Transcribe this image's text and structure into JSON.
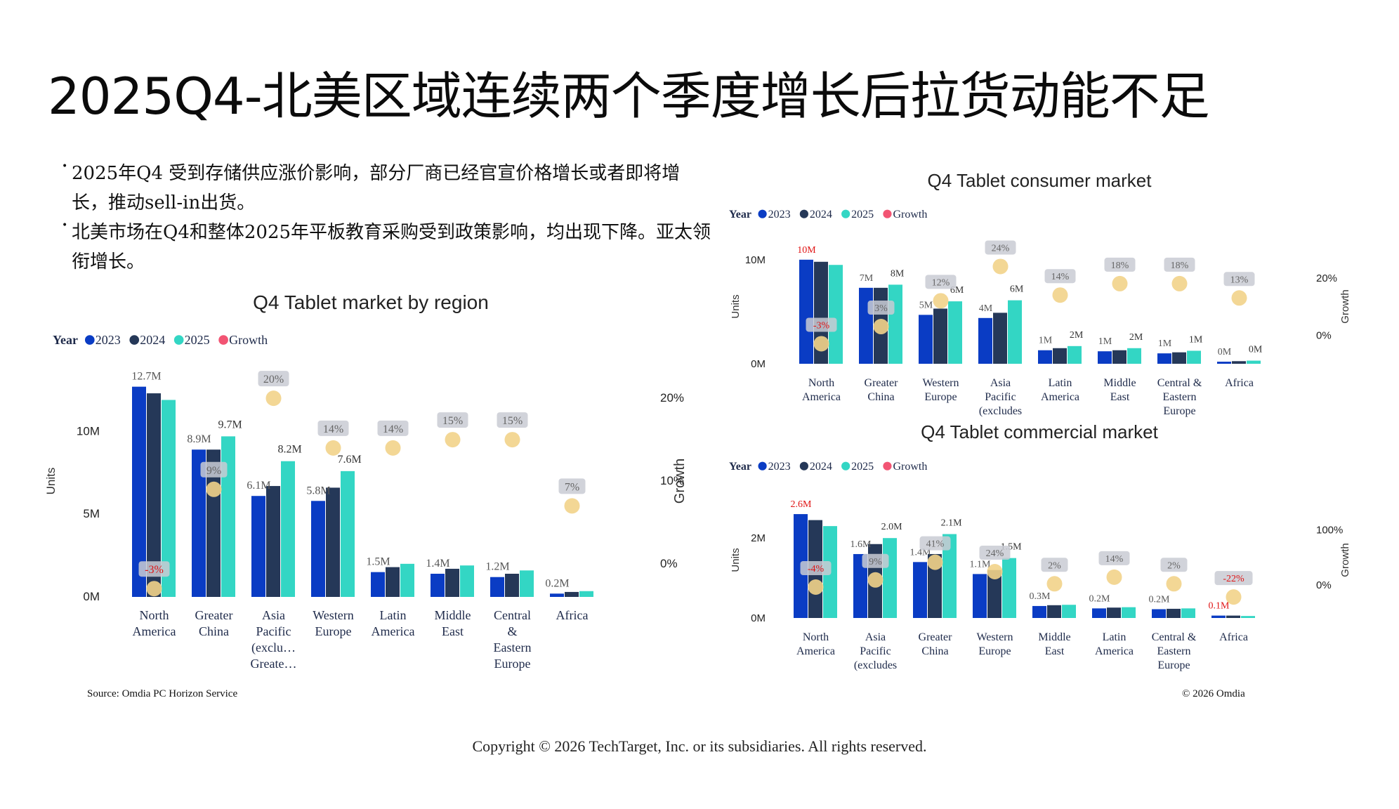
{
  "page": {
    "title": "2025Q4-北美区域连续两个季度增长后拉货动能不足",
    "bullets": [
      "2025年Q4 受到存储供应涨价影响，部分厂商已经官宣价格增长或者即将增长，推动sell-in出货。",
      "北美市场在Q4和整体2025年平板教育采购受到政策影响，均出现下降。亚太领衔增长。"
    ],
    "source": "Source: Omdia PC Horizon Service",
    "omdia_copyright": "© 2026 Omdia",
    "copyright": "Copyright © 2026 TechTarget, Inc. or its subsidiaries. All rights reserved."
  },
  "colors": {
    "y2023": "#0a3cc4",
    "y2024": "#253858",
    "y2025": "#33d6c4",
    "growth": "#f2d38a",
    "growth_legend": "#f25473",
    "neg": "#e01414",
    "axis_text": "#1e2a4a"
  },
  "chart_data": [
    {
      "id": "region",
      "type": "bar",
      "title": "Q4 Tablet market by region",
      "legend_label": "Year",
      "series_names": [
        "2023",
        "2024",
        "2025"
      ],
      "growth_name": "Growth",
      "ylabel": "Units",
      "y2label": "Growth",
      "ylim": [
        0,
        14
      ],
      "y_ticks": [
        {
          "v": 0,
          "label": "0M"
        },
        {
          "v": 5,
          "label": "5M"
        },
        {
          "v": 10,
          "label": "10M"
        }
      ],
      "y2lim": [
        -4,
        24
      ],
      "y2_ticks": [
        {
          "v": 0,
          "label": "0%"
        },
        {
          "v": 10,
          "label": "10%"
        },
        {
          "v": 20,
          "label": "20%"
        }
      ],
      "categories": [
        {
          "name": [
            "North",
            "America"
          ],
          "values": [
            12.7,
            12.3,
            11.9
          ],
          "label": "12.7M",
          "label_on": 0,
          "growth": -3,
          "growth_label": "-3%"
        },
        {
          "name": [
            "Greater",
            "China"
          ],
          "values": [
            8.9,
            8.9,
            9.7
          ],
          "label": "8.9M",
          "label2": "9.7M",
          "growth": 9,
          "growth_label": "9%"
        },
        {
          "name": [
            "Asia",
            "Pacific",
            "(exclu…",
            "Greate…"
          ],
          "values": [
            6.1,
            6.7,
            8.2
          ],
          "label": "6.1M",
          "label2": "8.2M",
          "growth": 20,
          "growth_label": "20%"
        },
        {
          "name": [
            "Western",
            "Europe"
          ],
          "values": [
            5.8,
            6.6,
            7.6
          ],
          "label": "5.8M",
          "label2": "7.6M",
          "growth": 14,
          "growth_label": "14%"
        },
        {
          "name": [
            "Latin",
            "America"
          ],
          "values": [
            1.5,
            1.8,
            2.0
          ],
          "label": "1.5M",
          "growth": 14,
          "growth_label": "14%"
        },
        {
          "name": [
            "Middle",
            "East"
          ],
          "values": [
            1.4,
            1.7,
            1.9
          ],
          "label": "1.4M",
          "growth": 15,
          "growth_label": "15%"
        },
        {
          "name": [
            "Central",
            "&",
            "Eastern",
            "Europe"
          ],
          "values": [
            1.2,
            1.4,
            1.6
          ],
          "label": "1.2M",
          "growth": 15,
          "growth_label": "15%"
        },
        {
          "name": [
            "Africa"
          ],
          "values": [
            0.2,
            0.3,
            0.35
          ],
          "label": "0.2M",
          "growth": 7,
          "growth_label": "7%"
        }
      ]
    },
    {
      "id": "consumer",
      "type": "bar",
      "title": "Q4 Tablet consumer market",
      "legend_label": "Year",
      "series_names": [
        "2023",
        "2024",
        "2025"
      ],
      "growth_name": "Growth",
      "ylabel": "Units",
      "y2label": "Growth",
      "ylim": [
        0,
        11
      ],
      "y_ticks": [
        {
          "v": 0,
          "label": "0M"
        },
        {
          "v": 10,
          "label": "10M"
        }
      ],
      "y2lim": [
        -10,
        30
      ],
      "y2_ticks": [
        {
          "v": 0,
          "label": "0%"
        },
        {
          "v": 20,
          "label": "20%"
        }
      ],
      "categories": [
        {
          "name": [
            "North",
            "America"
          ],
          "values": [
            10.0,
            9.8,
            9.5
          ],
          "label": "10M",
          "label_red": true,
          "growth": -3,
          "growth_label": "-3%"
        },
        {
          "name": [
            "Greater",
            "China"
          ],
          "values": [
            7.3,
            7.3,
            7.6
          ],
          "label": "7M",
          "label2": "8M",
          "growth": 3,
          "growth_label": "3%"
        },
        {
          "name": [
            "Western",
            "Europe"
          ],
          "values": [
            4.7,
            5.3,
            6.0
          ],
          "label": "5M",
          "label2": "6M",
          "growth": 12,
          "growth_label": "12%"
        },
        {
          "name": [
            "Asia",
            "Pacific",
            "(excludes"
          ],
          "values": [
            4.4,
            4.9,
            6.1
          ],
          "label": "4M",
          "label2": "6M",
          "growth": 24,
          "growth_label": "24%"
        },
        {
          "name": [
            "Latin",
            "America"
          ],
          "values": [
            1.3,
            1.5,
            1.7
          ],
          "label": "1M",
          "label2": "2M",
          "growth": 14,
          "growth_label": "14%"
        },
        {
          "name": [
            "Middle",
            "East"
          ],
          "values": [
            1.2,
            1.3,
            1.5
          ],
          "label": "1M",
          "label2": "2M",
          "growth": 18,
          "growth_label": "18%"
        },
        {
          "name": [
            "Central &",
            "Eastern",
            "Europe"
          ],
          "values": [
            1.0,
            1.1,
            1.25
          ],
          "label": "1M",
          "label2": "1M",
          "growth": 18,
          "growth_label": "18%"
        },
        {
          "name": [
            "Africa"
          ],
          "values": [
            0.2,
            0.25,
            0.3
          ],
          "label": "0M",
          "label2": "0M",
          "growth": 13,
          "growth_label": "13%"
        }
      ]
    },
    {
      "id": "commercial",
      "type": "bar",
      "title": "Q4 Tablet commercial market",
      "legend_label": "Year",
      "series_names": [
        "2023",
        "2024",
        "2025"
      ],
      "growth_name": "Growth",
      "ylabel": "Units",
      "y2label": "Growth",
      "ylim": [
        0,
        2.9
      ],
      "y_ticks": [
        {
          "v": 0,
          "label": "0M"
        },
        {
          "v": 2,
          "label": "2M"
        }
      ],
      "y2lim": [
        -60,
        150
      ],
      "y2_ticks": [
        {
          "v": 0,
          "label": "0%"
        },
        {
          "v": 100,
          "label": "100%"
        }
      ],
      "categories": [
        {
          "name": [
            "North",
            "America"
          ],
          "values": [
            2.6,
            2.45,
            2.3
          ],
          "label": "2.6M",
          "label_red": true,
          "growth": -4,
          "growth_label": "-4%"
        },
        {
          "name": [
            "Asia",
            "Pacific",
            "(excludes"
          ],
          "values": [
            1.6,
            1.85,
            2.0
          ],
          "label": "1.6M",
          "label2": "2.0M",
          "growth": 9,
          "growth_label": "9%"
        },
        {
          "name": [
            "Greater",
            "China"
          ],
          "values": [
            1.4,
            1.6,
            2.1
          ],
          "label": "1.4M",
          "label2": "2.1M",
          "growth": 41,
          "growth_label": "41%"
        },
        {
          "name": [
            "Western",
            "Europe"
          ],
          "values": [
            1.1,
            1.2,
            1.5
          ],
          "label": "1.1M",
          "label2": "1.5M",
          "growth": 24,
          "growth_label": "24%"
        },
        {
          "name": [
            "Middle",
            "East"
          ],
          "values": [
            0.3,
            0.32,
            0.33
          ],
          "label": "0.3M",
          "growth": 2,
          "growth_label": "2%"
        },
        {
          "name": [
            "Latin",
            "America"
          ],
          "values": [
            0.24,
            0.26,
            0.27
          ],
          "label": "0.2M",
          "growth": 14,
          "growth_label": "14%"
        },
        {
          "name": [
            "Central &",
            "Eastern",
            "Europe"
          ],
          "values": [
            0.22,
            0.23,
            0.24
          ],
          "label": "0.2M",
          "growth": 2,
          "growth_label": "2%"
        },
        {
          "name": [
            "Africa"
          ],
          "values": [
            0.06,
            0.06,
            0.05
          ],
          "label": "0.1M",
          "label_red": true,
          "growth": -22,
          "growth_label": "-22%",
          "growth_red": true
        }
      ]
    }
  ]
}
